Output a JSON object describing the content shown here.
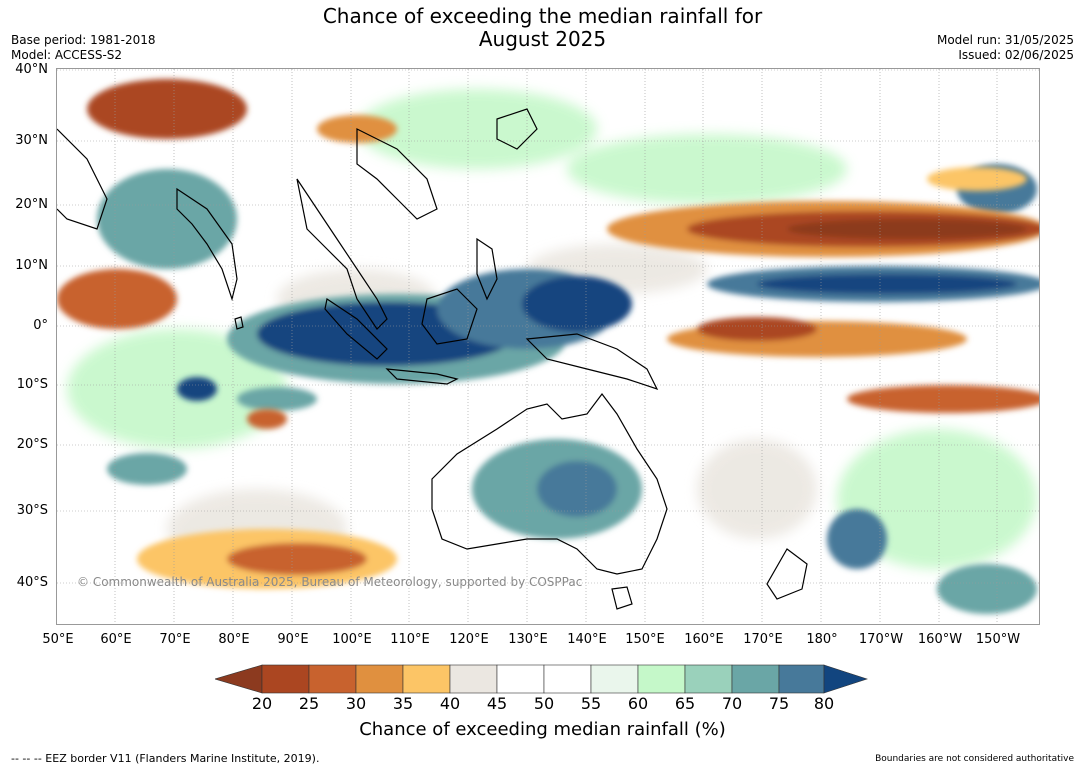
{
  "title_line1": "Chance of exceeding the median rainfall for",
  "title_line2": "August 2025",
  "meta_left": {
    "base_period": "Base period: 1981-2018",
    "model": "Model: ACCESS-S2"
  },
  "meta_right": {
    "model_run": "Model run: 31/05/2025",
    "issued": "Issued: 02/06/2025"
  },
  "lat_ticks": [
    "40°N",
    "30°N",
    "20°N",
    "10°N",
    "0°",
    "10°S",
    "20°S",
    "30°S",
    "40°S"
  ],
  "lon_ticks": [
    "50°E",
    "60°E",
    "70°E",
    "80°E",
    "90°E",
    "100°E",
    "110°E",
    "120°E",
    "130°E",
    "140°E",
    "150°E",
    "160°E",
    "170°E",
    "180°",
    "170°W",
    "160°W",
    "150°W"
  ],
  "copyright": "© Commonwealth of Australia 2025, Bureau of Meteorology, supported by COSPPac",
  "colorbar": {
    "ticks": [
      "20",
      "25",
      "30",
      "35",
      "40",
      "45",
      "50",
      "55",
      "60",
      "65",
      "70",
      "75",
      "80"
    ],
    "label": "Chance of exceeding median rainfall (%)",
    "colors": {
      "below20": "#8c3a1f",
      "20-25": "#ab4621",
      "25-30": "#c8622e",
      "30-35": "#e0903f",
      "35-40": "#fcc566",
      "40-45": "#ebe7e1",
      "45-50": "#ffffff",
      "50-55": "#ffffff",
      "55-60": "#eaf6ec",
      "60-65": "#c5f8c9",
      "65-70": "#9ad1bb",
      "70-75": "#6aa6a6",
      "75-80": "#47799a",
      "above80": "#12457f"
    }
  },
  "footer_left": "--  --  -- EEZ border V11 (Flanders Marine Institute, 2019).",
  "footer_right": "Boundaries are not considered authoritative"
}
